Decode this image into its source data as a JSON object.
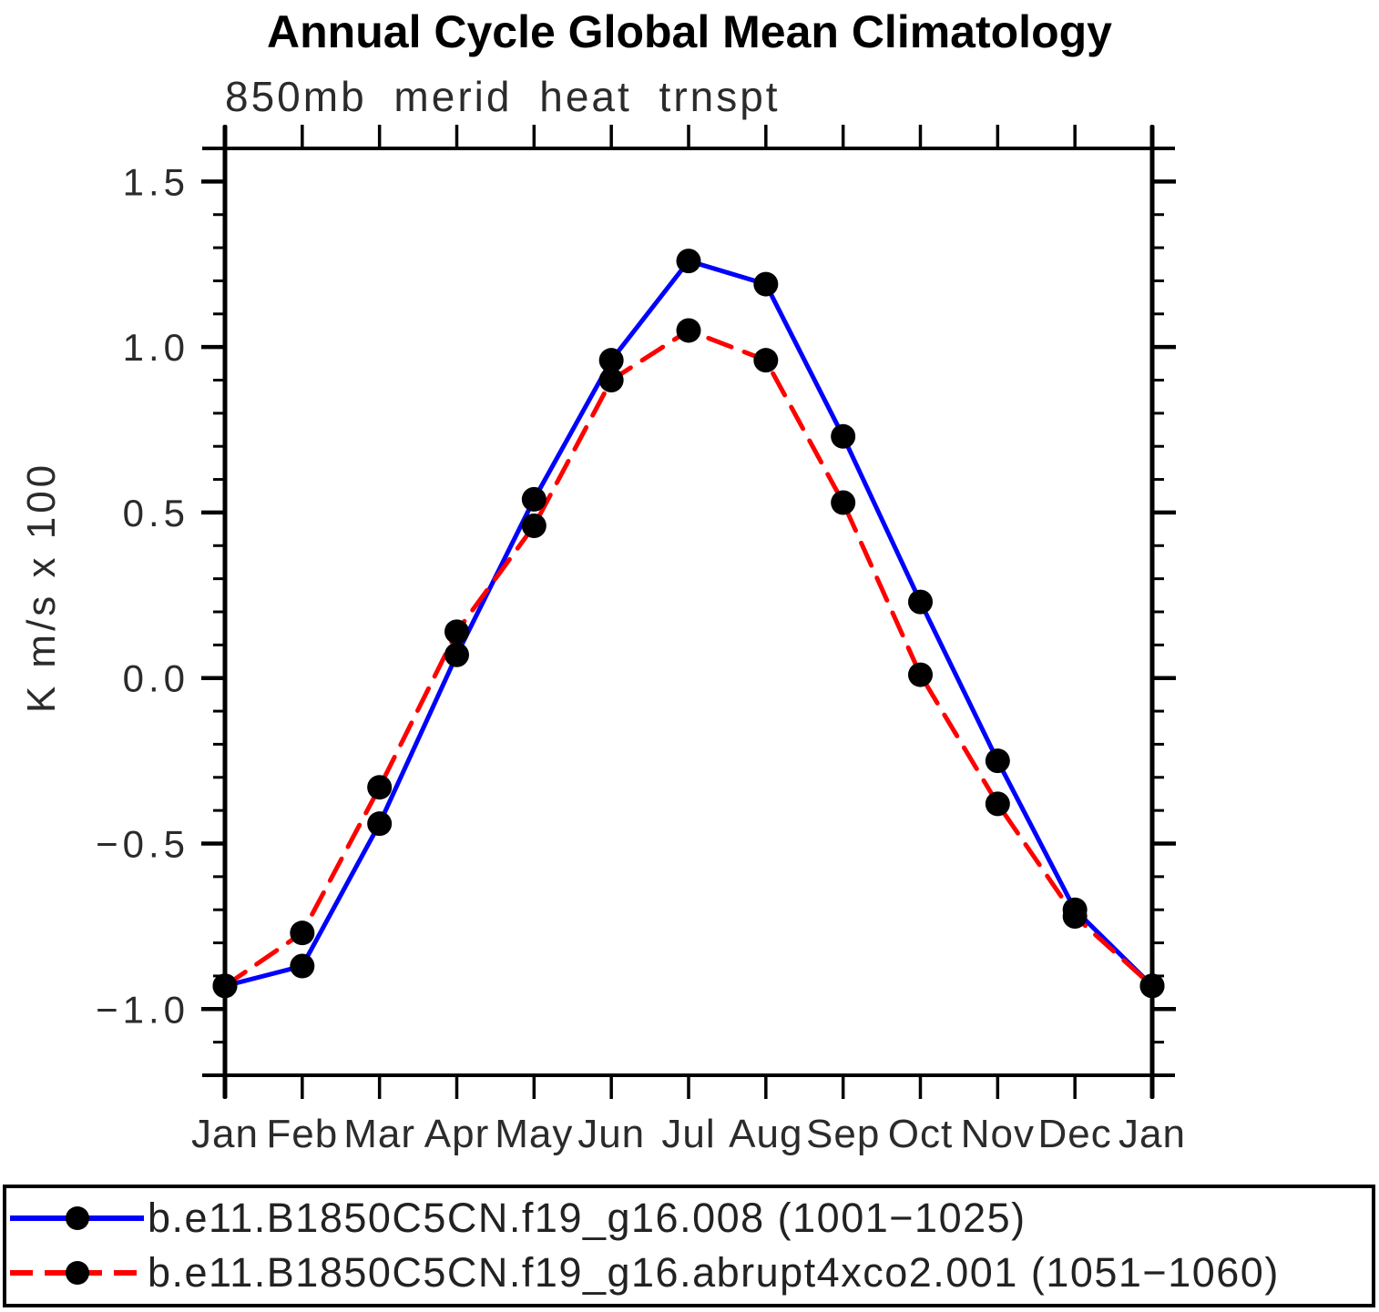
{
  "chart_data": {
    "type": "line",
    "title": "Annual Cycle Global Mean Climatology",
    "subtitle": "850mb merid heat trnspt",
    "ylabel": "K m/s x 100",
    "xlabel": "",
    "categories": [
      "Jan",
      "Feb",
      "Mar",
      "Apr",
      "May",
      "Jun",
      "Jul",
      "Aug",
      "Sep",
      "Oct",
      "Nov",
      "Dec",
      "Jan"
    ],
    "series": [
      {
        "name": "b.e11.B1850C5CN.f19_g16.008 (1001−1025)",
        "color": "#0000ff",
        "line_style": "solid",
        "marker": "filled-circle",
        "marker_color": "#000000",
        "values": [
          -0.93,
          -0.87,
          -0.44,
          0.07,
          0.54,
          0.96,
          1.26,
          1.19,
          0.73,
          0.23,
          -0.25,
          -0.7,
          -0.93
        ]
      },
      {
        "name": "b.e11.B1850C5CN.f19_g16.abrupt4xco2.001 (1051−1060)",
        "color": "#ff0000",
        "line_style": "dashed",
        "marker": "filled-circle",
        "marker_color": "#000000",
        "values": [
          -0.93,
          -0.77,
          -0.33,
          0.14,
          0.46,
          0.9,
          1.05,
          0.96,
          0.53,
          0.01,
          -0.38,
          -0.72,
          -0.93
        ]
      }
    ],
    "ylim": [
      -1.2,
      1.6
    ],
    "ytick_major_values": [
      1.5,
      1.0,
      0.5,
      0.0,
      -0.5,
      -1.0
    ],
    "ytick_major_labels": [
      "1.5",
      "1.0",
      "0.5",
      "0.0",
      "−0.5",
      "−1.0"
    ],
    "ytick_minor_step": 0.1,
    "grid": false,
    "legend_position": "bottom",
    "axis_color": "#000000",
    "background_color": "#ffffff"
  }
}
